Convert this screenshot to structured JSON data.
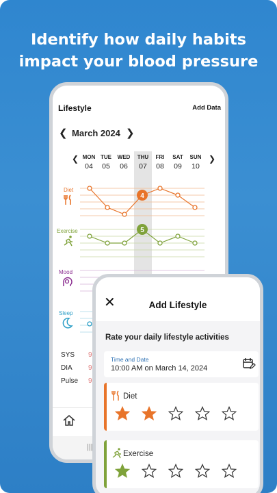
{
  "headline": {
    "line1": "Identify how daily habits",
    "line2": "impact your blood pressure"
  },
  "lifestyle_screen": {
    "title": "Lifestyle",
    "add_label": "Add Data",
    "month_label": "March 2024",
    "days": [
      {
        "name": "MON",
        "date": "04"
      },
      {
        "name": "TUE",
        "date": "05"
      },
      {
        "name": "WED",
        "date": "06"
      },
      {
        "name": "THU",
        "date": "07"
      },
      {
        "name": "FRI",
        "date": "08"
      },
      {
        "name": "SAT",
        "date": "09"
      },
      {
        "name": "SUN",
        "date": "10"
      }
    ],
    "categories": {
      "diet": {
        "label": "Diet",
        "color": "#e8742a",
        "highlight": "4"
      },
      "exercise": {
        "label": "Exercise",
        "color": "#7fa23a",
        "highlight": "5"
      },
      "mood": {
        "label": "Mood",
        "color": "#8a2c8f"
      },
      "sleep": {
        "label": "Sleep",
        "color": "#2d9fc7"
      }
    },
    "vitals": {
      "sys": "SYS",
      "dia": "DIA",
      "pulse": "Pulse",
      "partial_value": "9"
    }
  },
  "add_lifestyle": {
    "title": "Add Lifestyle",
    "subtitle": "Rate your daily lifestyle activities",
    "time_label": "Time and Date",
    "time_value": "10:00 AM on March 14, 2024",
    "diet": {
      "label": "Diet",
      "rating": 2,
      "max": 5,
      "color": "#e8742a"
    },
    "exercise": {
      "label": "Exercise",
      "rating": 1,
      "max": 5,
      "color": "#7fa23a"
    }
  }
}
